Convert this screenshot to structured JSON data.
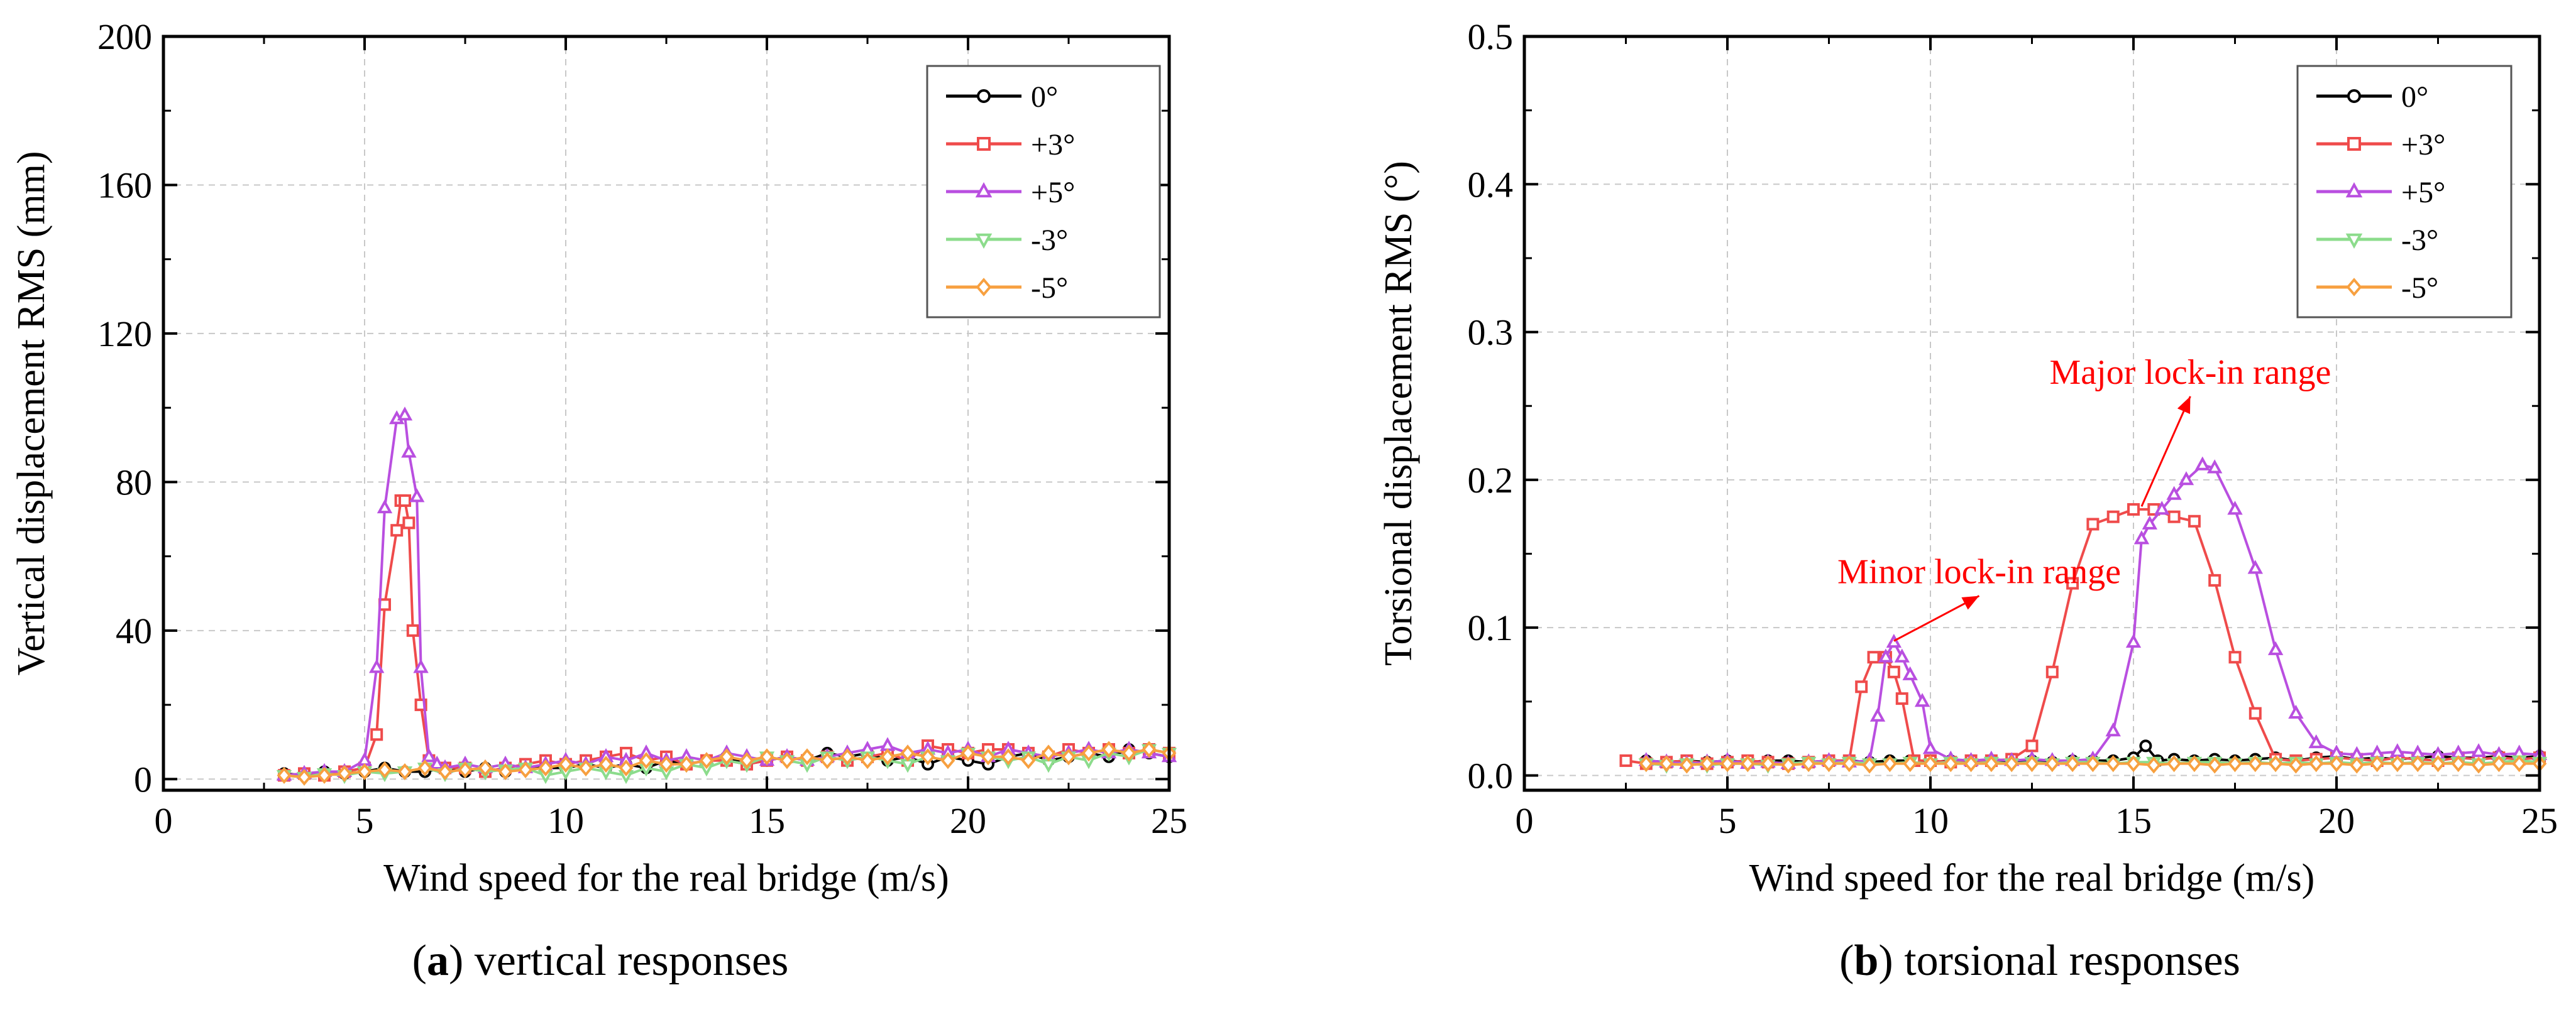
{
  "chart_data": [
    {
      "type": "line",
      "caption_label": "(a)",
      "caption_text": " vertical responses",
      "xlabel": "Wind speed for the real bridge (m/s)",
      "ylabel": "Vertical displacement RMS (mm)",
      "xlim": [
        0,
        25
      ],
      "ylim": [
        -3,
        200
      ],
      "xticks": [
        0,
        5,
        10,
        15,
        20,
        25
      ],
      "yticks": [
        0,
        40,
        80,
        120,
        160,
        200
      ],
      "xtick_labels": [
        "0",
        "5",
        "10",
        "15",
        "20",
        "25"
      ],
      "ytick_labels": [
        "0",
        "40",
        "80",
        "120",
        "160",
        "200"
      ],
      "grid": true,
      "legend_position": "top-right",
      "annotations": [],
      "series": [
        {
          "name": "0°",
          "color": "#000000",
          "marker": "circle",
          "x": [
            3,
            3.5,
            4,
            4.5,
            5,
            5.5,
            6,
            6.5,
            7,
            7.5,
            8,
            8.5,
            9,
            9.5,
            10,
            10.5,
            11,
            11.5,
            12,
            12.5,
            13,
            13.5,
            14,
            14.5,
            15,
            15.5,
            16,
            16.5,
            17,
            17.5,
            18,
            18.5,
            19,
            19.5,
            20,
            20.5,
            21,
            21.5,
            22,
            22.5,
            23,
            23.5,
            24,
            24.5,
            25
          ],
          "y": [
            1.5,
            1,
            2,
            1.5,
            2,
            3,
            2,
            2,
            3,
            2,
            3,
            2,
            3,
            3,
            3,
            4,
            3,
            4,
            3,
            5,
            4,
            5,
            6,
            4,
            5,
            6,
            5,
            7,
            6,
            7,
            5,
            6,
            4,
            6,
            5,
            4,
            6,
            7,
            5,
            6,
            7,
            6,
            8,
            7,
            6
          ]
        },
        {
          "name": "+3°",
          "color": "#ef4b4b",
          "marker": "square",
          "x": [
            3,
            3.5,
            4,
            4.5,
            5,
            5.3,
            5.5,
            5.8,
            5.9,
            6,
            6.1,
            6.2,
            6.4,
            6.6,
            7,
            7.5,
            8,
            8.5,
            9,
            9.5,
            10,
            10.5,
            11,
            11.5,
            12,
            12.5,
            13,
            13.5,
            14,
            14.5,
            15,
            15.5,
            16,
            16.5,
            17,
            17.5,
            18,
            18.5,
            19,
            19.5,
            20,
            20.5,
            21,
            21.5,
            22,
            22.5,
            23,
            23.5,
            24,
            24.5,
            25
          ],
          "y": [
            1,
            1.5,
            1,
            2,
            3,
            12,
            47,
            67,
            75,
            75,
            69,
            40,
            20,
            5,
            3,
            3,
            2,
            3,
            4,
            5,
            4,
            5,
            6,
            7,
            5,
            6,
            4,
            5,
            5,
            4,
            5,
            6,
            5,
            6,
            5,
            6,
            7,
            5,
            9,
            8,
            7,
            8,
            8,
            7,
            6,
            8,
            7,
            8,
            7,
            8,
            7
          ]
        },
        {
          "name": "+5°",
          "color": "#b94fe0",
          "marker": "triangle-up",
          "x": [
            3,
            3.5,
            4,
            4.5,
            5,
            5.3,
            5.5,
            5.8,
            6,
            6.1,
            6.3,
            6.4,
            6.6,
            6.8,
            7,
            7.5,
            8,
            8.5,
            9,
            9.5,
            10,
            10.5,
            11,
            11.5,
            12,
            12.5,
            13,
            13.5,
            14,
            14.5,
            15,
            15.5,
            16,
            16.5,
            17,
            17.5,
            18,
            18.5,
            19,
            19.5,
            20,
            20.5,
            21,
            21.5,
            22,
            22.5,
            23,
            23.5,
            24,
            24.5,
            25
          ],
          "y": [
            1,
            1.5,
            2,
            2,
            5,
            30,
            73,
            97,
            98,
            88,
            76,
            30,
            6,
            4,
            3,
            4,
            3,
            4,
            3,
            4,
            5,
            4,
            6,
            5,
            7,
            5,
            6,
            5,
            7,
            6,
            5,
            6,
            5,
            6,
            7,
            8,
            9,
            7,
            8,
            7,
            8,
            6,
            8,
            7,
            6,
            7,
            8,
            7,
            8,
            7,
            6
          ]
        },
        {
          "name": "-3°",
          "color": "#8cdc8c",
          "marker": "triangle-down",
          "x": [
            3,
            3.5,
            4,
            4.5,
            5,
            5.5,
            6,
            6.5,
            7,
            7.5,
            8,
            8.5,
            9,
            9.5,
            10,
            10.5,
            11,
            11.5,
            12,
            12.5,
            13,
            13.5,
            14,
            14.5,
            15,
            15.5,
            16,
            16.5,
            17,
            17.5,
            18,
            18.5,
            19,
            19.5,
            20,
            20.5,
            21,
            21.5,
            22,
            22.5,
            23,
            23.5,
            24,
            24.5,
            25
          ],
          "y": [
            1,
            0.5,
            1.5,
            1,
            2,
            1.5,
            2,
            3,
            1.5,
            3,
            2,
            2.5,
            3,
            1,
            2,
            3,
            2,
            1,
            3,
            2,
            4,
            3,
            5,
            4,
            6,
            5,
            4,
            6,
            5,
            6,
            5,
            4,
            6,
            5,
            7,
            6,
            5,
            6,
            4,
            6,
            5,
            7,
            6,
            8,
            7
          ]
        },
        {
          "name": "-5°",
          "color": "#f7a040",
          "marker": "diamond",
          "x": [
            3,
            3.5,
            4,
            4.5,
            5,
            5.5,
            6,
            6.5,
            7,
            7.5,
            8,
            8.5,
            9,
            9.5,
            10,
            10.5,
            11,
            11.5,
            12,
            12.5,
            13,
            13.5,
            14,
            14.5,
            15,
            15.5,
            16,
            16.5,
            17,
            17.5,
            18,
            18.5,
            19,
            19.5,
            20,
            20.5,
            21,
            21.5,
            22,
            22.5,
            23,
            23.5,
            24,
            24.5,
            25
          ],
          "y": [
            1,
            0.5,
            1,
            1.5,
            2,
            2.5,
            2,
            3,
            2,
            2.5,
            3,
            2,
            2.5,
            3,
            4,
            3,
            4,
            3,
            5,
            4,
            4,
            5,
            6,
            5,
            6,
            5,
            6,
            5,
            6,
            5,
            6,
            7,
            6,
            5,
            7,
            6,
            6,
            5,
            7,
            6,
            7,
            8,
            7,
            8,
            7
          ]
        }
      ]
    },
    {
      "type": "line",
      "caption_label": "(b)",
      "caption_text": " torsional responses",
      "xlabel": "Wind speed for the real bridge (m/s)",
      "ylabel": "Torsional displacement RMS (°)",
      "xlim": [
        0,
        25
      ],
      "ylim": [
        -0.01,
        0.5
      ],
      "xticks": [
        0,
        5,
        10,
        15,
        20,
        25
      ],
      "yticks": [
        0,
        0.1,
        0.2,
        0.3,
        0.4,
        0.5
      ],
      "xtick_labels": [
        "0",
        "5",
        "10",
        "15",
        "20",
        "25"
      ],
      "ytick_labels": [
        "0.0",
        "0.1",
        "0.2",
        "0.3",
        "0.4",
        "0.5"
      ],
      "grid": true,
      "legend_position": "top-right",
      "annotations": [
        {
          "text": "Major lock-in range",
          "anchor_x": 16.4,
          "anchor_y": 0.265,
          "target_x": 15.2,
          "target_y": 0.182
        },
        {
          "text": "Minor lock-in range",
          "anchor_x": 11.2,
          "anchor_y": 0.13,
          "target_x": 9.1,
          "target_y": 0.091
        }
      ],
      "series": [
        {
          "name": "0°",
          "color": "#000000",
          "marker": "circle",
          "x": [
            3,
            3.5,
            4,
            4.5,
            5,
            5.5,
            6,
            6.5,
            7,
            7.5,
            8,
            8.5,
            9,
            9.5,
            10,
            10.5,
            11,
            11.5,
            12,
            12.5,
            13,
            13.5,
            14,
            14.5,
            15,
            15.3,
            15.6,
            16,
            16.5,
            17,
            17.5,
            18,
            18.5,
            19,
            19.5,
            20,
            20.5,
            21,
            21.5,
            22,
            22.5,
            23,
            23.5,
            24,
            24.5,
            25
          ],
          "y": [
            0.01,
            0.009,
            0.01,
            0.009,
            0.01,
            0.009,
            0.01,
            0.01,
            0.009,
            0.01,
            0.01,
            0.009,
            0.01,
            0.01,
            0.009,
            0.01,
            0.01,
            0.009,
            0.01,
            0.01,
            0.009,
            0.01,
            0.01,
            0.01,
            0.012,
            0.02,
            0.01,
            0.011,
            0.01,
            0.011,
            0.01,
            0.011,
            0.012,
            0.01,
            0.012,
            0.013,
            0.011,
            0.012,
            0.011,
            0.012,
            0.013,
            0.012,
            0.012,
            0.013,
            0.012,
            0.013
          ]
        },
        {
          "name": "+3°",
          "color": "#ef4b4b",
          "marker": "square",
          "x": [
            2.5,
            3,
            3.5,
            4,
            4.5,
            5,
            5.5,
            6,
            6.5,
            7,
            7.5,
            8,
            8.3,
            8.6,
            8.9,
            9.1,
            9.3,
            9.6,
            10,
            10.5,
            11,
            11.5,
            12,
            12.5,
            13,
            13.5,
            14,
            14.5,
            15,
            15.5,
            16,
            16.5,
            17,
            17.5,
            18,
            18.5,
            19,
            19.5,
            20,
            20.5,
            21,
            21.5,
            22,
            22.5,
            23,
            23.5,
            24,
            24.5,
            25
          ],
          "y": [
            0.01,
            0.008,
            0.009,
            0.01,
            0.008,
            0.009,
            0.01,
            0.009,
            0.008,
            0.009,
            0.01,
            0.01,
            0.06,
            0.08,
            0.08,
            0.07,
            0.052,
            0.01,
            0.01,
            0.009,
            0.01,
            0.01,
            0.011,
            0.02,
            0.07,
            0.13,
            0.17,
            0.175,
            0.18,
            0.18,
            0.175,
            0.172,
            0.132,
            0.08,
            0.042,
            0.011,
            0.01,
            0.011,
            0.012,
            0.011,
            0.01,
            0.012,
            0.011,
            0.01,
            0.012,
            0.011,
            0.012,
            0.011,
            0.012
          ]
        },
        {
          "name": "+5°",
          "color": "#b94fe0",
          "marker": "triangle-up",
          "x": [
            3,
            3.5,
            4,
            4.5,
            5,
            5.5,
            6,
            6.5,
            7,
            7.5,
            8,
            8.5,
            8.7,
            8.9,
            9.1,
            9.3,
            9.5,
            9.8,
            10,
            10.5,
            11,
            11.5,
            12,
            12.5,
            13,
            13.5,
            14,
            14.5,
            15,
            15.2,
            15.4,
            15.7,
            16,
            16.3,
            16.7,
            17,
            17.5,
            18,
            18.5,
            19,
            19.5,
            20,
            20.5,
            21,
            21.5,
            22,
            22.5,
            23,
            23.5,
            24,
            24.5,
            25
          ],
          "y": [
            0.01,
            0.009,
            0.008,
            0.009,
            0.01,
            0.008,
            0.009,
            0.008,
            0.009,
            0.01,
            0.009,
            0.01,
            0.04,
            0.08,
            0.09,
            0.08,
            0.068,
            0.05,
            0.018,
            0.011,
            0.01,
            0.011,
            0.01,
            0.011,
            0.01,
            0.01,
            0.011,
            0.03,
            0.09,
            0.16,
            0.17,
            0.18,
            0.19,
            0.2,
            0.21,
            0.208,
            0.18,
            0.14,
            0.085,
            0.042,
            0.022,
            0.015,
            0.014,
            0.015,
            0.016,
            0.015,
            0.014,
            0.015,
            0.016,
            0.014,
            0.015,
            0.014
          ]
        },
        {
          "name": "-3°",
          "color": "#8cdc8c",
          "marker": "triangle-down",
          "x": [
            3,
            3.5,
            4,
            4.5,
            5,
            5.5,
            6,
            6.5,
            7,
            7.5,
            8,
            8.5,
            9,
            9.5,
            10,
            10.5,
            11,
            11.5,
            12,
            12.5,
            13,
            13.5,
            14,
            14.5,
            15,
            15.5,
            16,
            16.5,
            17,
            17.5,
            18,
            18.5,
            19,
            19.5,
            20,
            20.5,
            21,
            21.5,
            22,
            22.5,
            23,
            23.5,
            24,
            24.5,
            25
          ],
          "y": [
            0.008,
            0.007,
            0.008,
            0.007,
            0.008,
            0.008,
            0.007,
            0.008,
            0.009,
            0.008,
            0.009,
            0.008,
            0.008,
            0.009,
            0.008,
            0.009,
            0.008,
            0.009,
            0.008,
            0.009,
            0.008,
            0.009,
            0.009,
            0.008,
            0.009,
            0.009,
            0.008,
            0.009,
            0.009,
            0.008,
            0.009,
            0.008,
            0.009,
            0.008,
            0.009,
            0.008,
            0.009,
            0.008,
            0.009,
            0.008,
            0.009,
            0.008,
            0.009,
            0.01,
            0.009
          ]
        },
        {
          "name": "-5°",
          "color": "#f7a040",
          "marker": "diamond",
          "x": [
            3,
            3.5,
            4,
            4.5,
            5,
            5.5,
            6,
            6.5,
            7,
            7.5,
            8,
            8.5,
            9,
            9.5,
            10,
            10.5,
            11,
            11.5,
            12,
            12.5,
            13,
            13.5,
            14,
            14.5,
            15,
            15.5,
            16,
            16.5,
            17,
            17.5,
            18,
            18.5,
            19,
            19.5,
            20,
            20.5,
            21,
            21.5,
            22,
            22.5,
            23,
            23.5,
            24,
            24.5,
            25
          ],
          "y": [
            0.008,
            0.008,
            0.007,
            0.008,
            0.008,
            0.008,
            0.008,
            0.007,
            0.008,
            0.008,
            0.008,
            0.007,
            0.008,
            0.008,
            0.008,
            0.008,
            0.008,
            0.008,
            0.008,
            0.008,
            0.008,
            0.008,
            0.008,
            0.008,
            0.008,
            0.007,
            0.008,
            0.008,
            0.007,
            0.008,
            0.008,
            0.008,
            0.007,
            0.008,
            0.008,
            0.007,
            0.008,
            0.008,
            0.008,
            0.008,
            0.008,
            0.007,
            0.008,
            0.008,
            0.008
          ]
        }
      ]
    }
  ]
}
